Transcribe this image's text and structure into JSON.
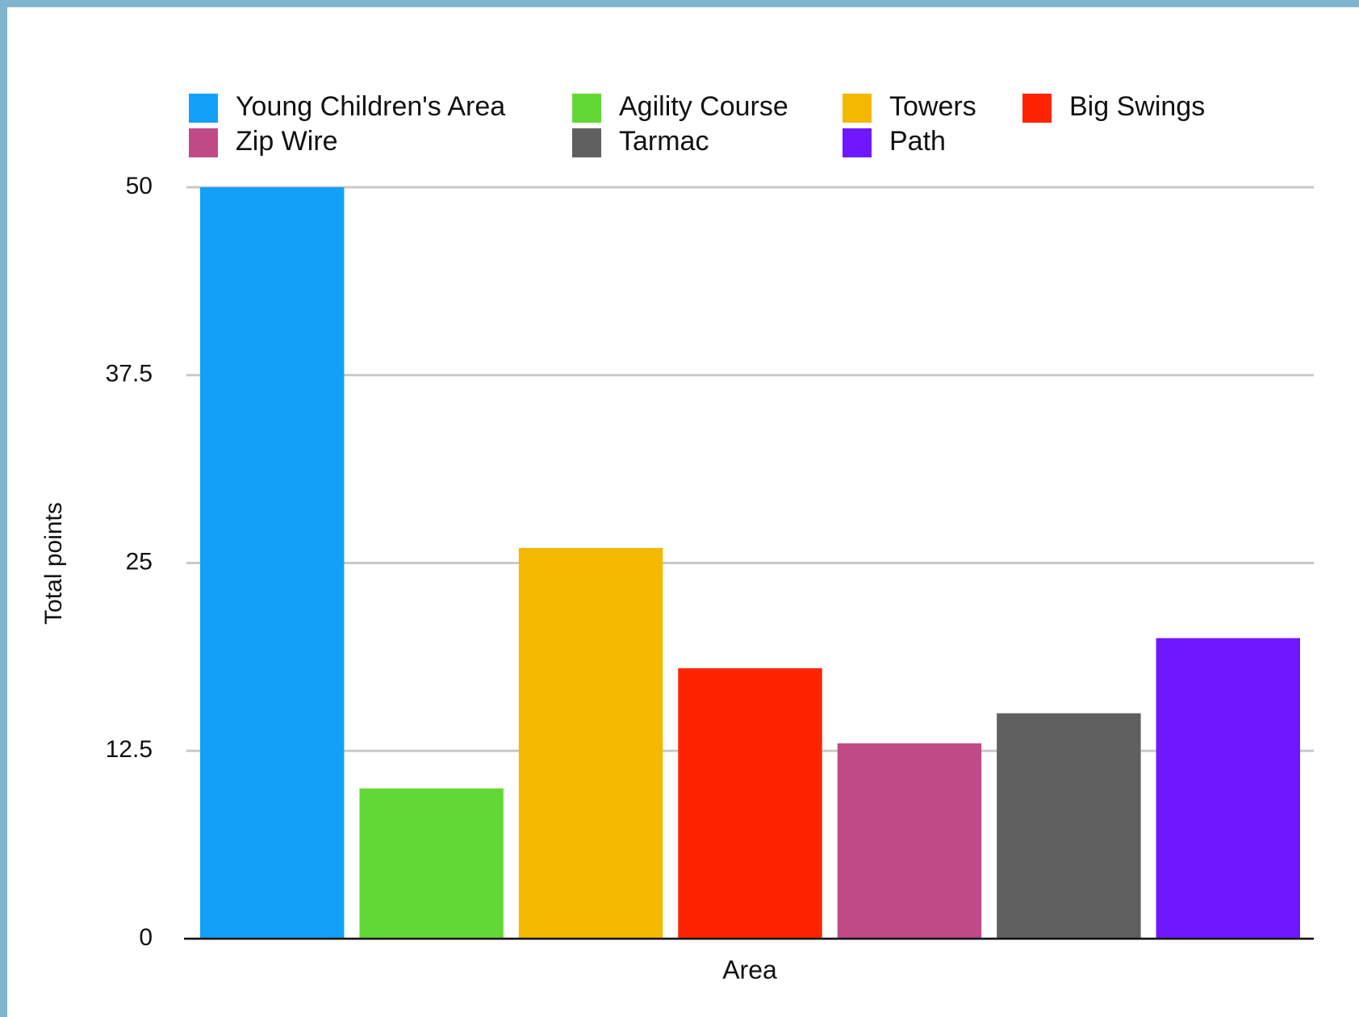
{
  "chart_data": {
    "type": "bar",
    "x_label": "Area",
    "y_label": "Total points",
    "series": [
      {
        "name": "Young Children's Area",
        "color": "#12a0f8",
        "values": [
          50
        ]
      },
      {
        "name": "Agility Course",
        "color": "#62d837",
        "values": [
          10
        ]
      },
      {
        "name": "Towers",
        "color": "#f4b800",
        "values": [
          26
        ]
      },
      {
        "name": "Big Swings",
        "color": "#ff2400",
        "values": [
          18
        ]
      },
      {
        "name": "Zip Wire",
        "color": "#c04a86",
        "values": [
          13
        ]
      },
      {
        "name": "Tarmac",
        "color": "#606060",
        "values": [
          15
        ]
      },
      {
        "name": "Path",
        "color": "#6f18ff",
        "values": [
          20
        ]
      }
    ],
    "ylim": [
      0,
      50
    ],
    "yticks": [
      0,
      12.5,
      25,
      37.5,
      50
    ],
    "grid": true
  }
}
